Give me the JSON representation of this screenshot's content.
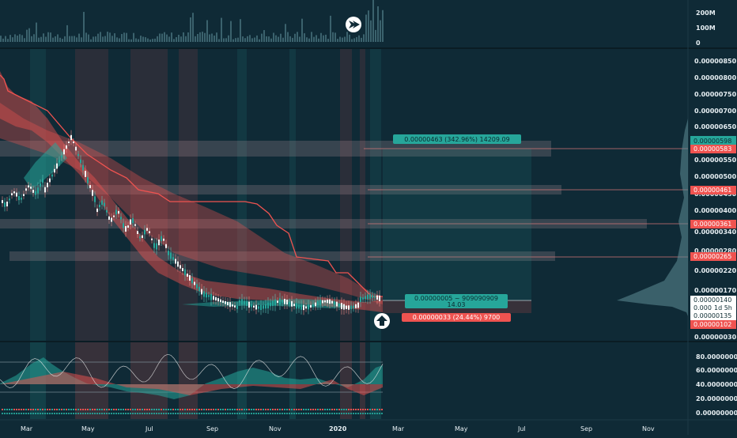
{
  "volume_axis": [
    "200M",
    "100M",
    "0"
  ],
  "price_axis": [
    "0.00000850",
    "0.00000800",
    "0.00000750",
    "0.00000700",
    "0.00000650",
    "0.00000550",
    "0.00000500",
    "0.00000450",
    "0.00000400",
    "0.00000340",
    "0.00000280",
    "0.00000220",
    "0.00000170",
    "0.00000030"
  ],
  "price_tags": [
    {
      "label": "0.00000598",
      "color": "#26a69a"
    },
    {
      "label": "0.00000583",
      "color": "#ef5350"
    },
    {
      "label": "0.00000461",
      "color": "#ef5350"
    },
    {
      "label": "0.00000361",
      "color": "#ef5350"
    },
    {
      "label": "0.00000265",
      "color": "#ef5350"
    },
    {
      "label": "0.00000140",
      "color": "#ffffff"
    },
    {
      "label": "0.000",
      "color": "#ffffff"
    },
    {
      "label": "1d 5h",
      "color": "#ffffff"
    },
    {
      "label": "0.00000135",
      "color": "#ffffff"
    },
    {
      "label": "0.00000102",
      "color": "#ef5350"
    }
  ],
  "osc_axis": [
    "80.00000000",
    "60.00000000",
    "40.00000000",
    "20.00000000",
    "0.00000000"
  ],
  "date_axis": [
    "Mar",
    "May",
    "Jul",
    "Sep",
    "Nov",
    "2020",
    "Mar",
    "May",
    "Jul",
    "Sep",
    "Nov"
  ],
  "position_tool": {
    "target_label": "0.00000463 (342.96%) 14209.09",
    "entry_line1": "0.00000005 ~ 909090909",
    "entry_line2": "14.03",
    "stop_label": "0.00000033 (24.44%) 9700"
  },
  "colors": {
    "background": "#0f2a36",
    "bull": "#26a69a",
    "bear": "#ef5350"
  }
}
